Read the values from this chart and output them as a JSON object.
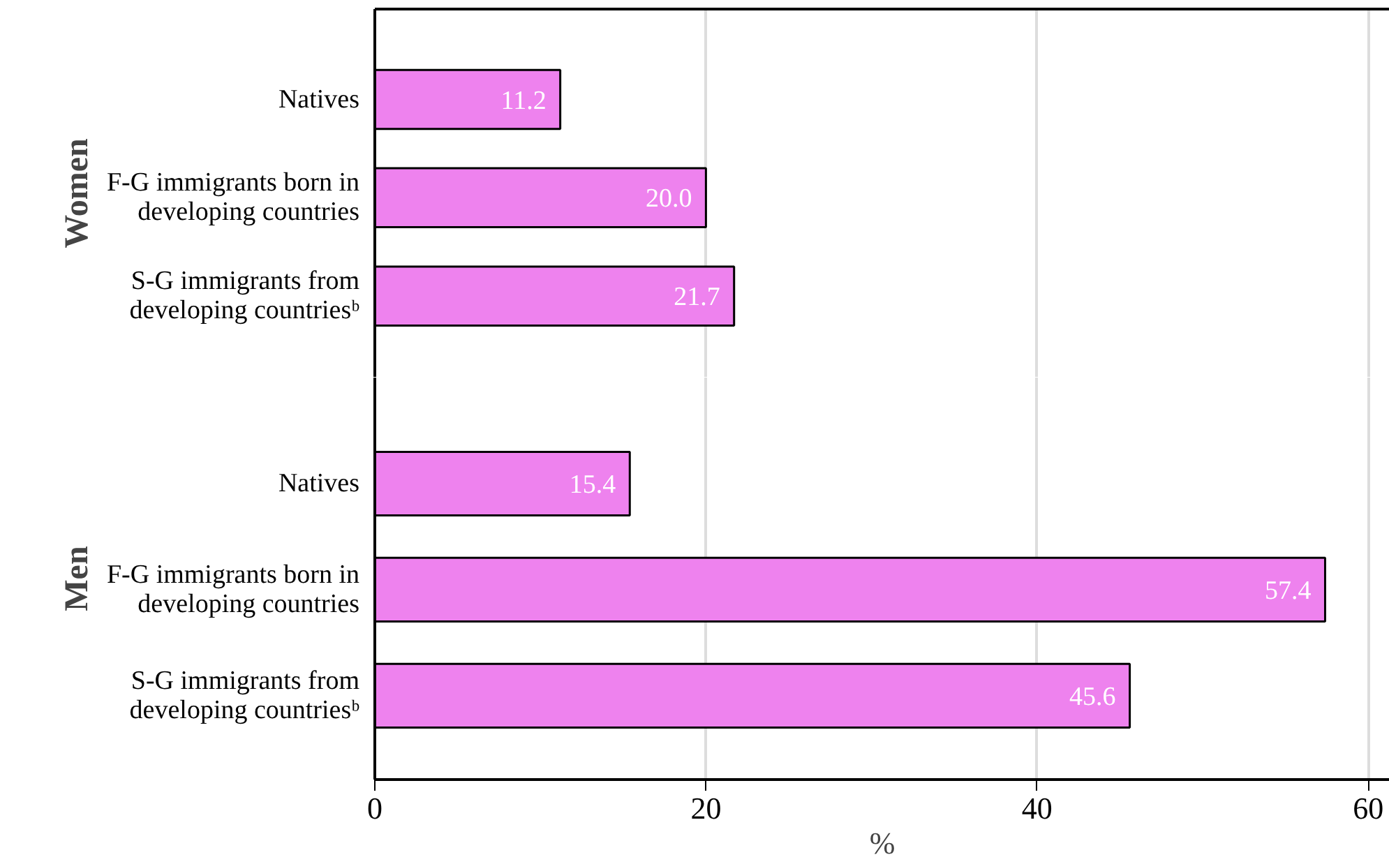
{
  "chart_data": [
    {
      "type": "bar",
      "orientation": "horizontal",
      "ylabel": "Women",
      "categories": [
        "Natives",
        "F-G immigrants born in\ndeveloping countries",
        "S-G immigrants from\ndeveloping countriesᵇ"
      ],
      "values": [
        11.2,
        20.0,
        21.7
      ],
      "value_labels": [
        "11.2",
        "20.0",
        "21.7"
      ],
      "color": "#ee82ee",
      "xlim": [
        0,
        61.3
      ],
      "xticks": [
        0,
        20,
        40,
        60
      ],
      "grid": "x",
      "tick_labels": "y"
    },
    {
      "type": "bar",
      "orientation": "horizontal",
      "ylabel": "Men",
      "xlabel": "%",
      "categories": [
        "Natives",
        "F-G immigrants born in\ndeveloping countries",
        "S-G immigrants from\ndeveloping countriesᵇ"
      ],
      "values": [
        15.4,
        57.4,
        45.6
      ],
      "value_labels": [
        "15.4",
        "57.4",
        "45.6"
      ],
      "color": "#ee82ee",
      "xlim": [
        0,
        61.3
      ],
      "xticks": [
        0,
        20,
        40,
        60
      ],
      "grid": "x"
    }
  ]
}
